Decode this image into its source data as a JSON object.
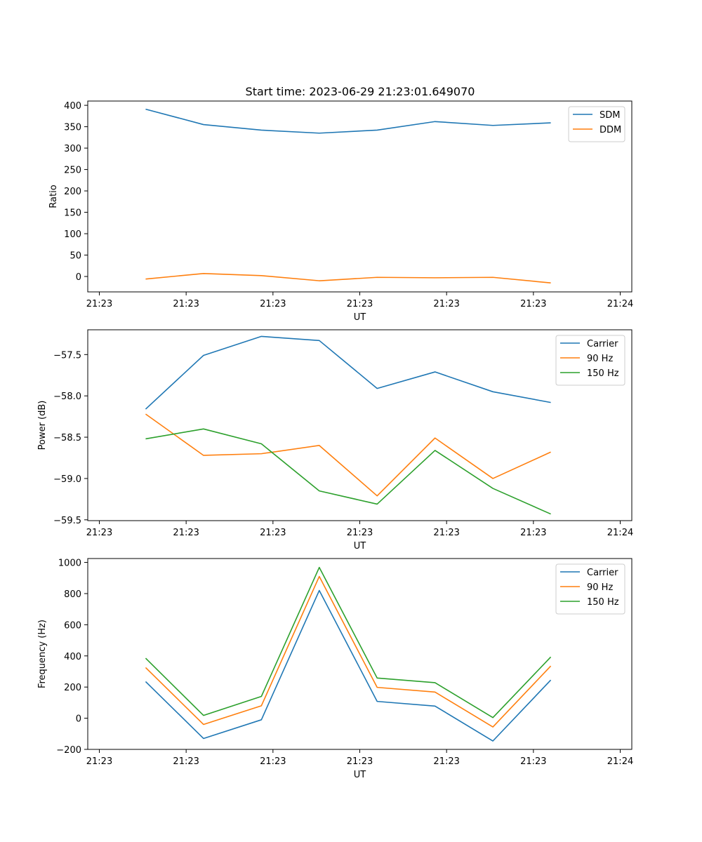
{
  "title": "Start time: 2023-06-29 21:23:01.649070",
  "chart_data": [
    {
      "type": "line",
      "xlabel": "UT",
      "ylabel": "Ratio",
      "x_positions": [
        1,
        2,
        3,
        4,
        5,
        6,
        7,
        8
      ],
      "xlim": [
        0,
        9.4
      ],
      "x_ticks": [
        {
          "pos": 0.2,
          "label": "21:23"
        },
        {
          "pos": 1.7,
          "label": "21:23"
        },
        {
          "pos": 3.2,
          "label": "21:23"
        },
        {
          "pos": 4.7,
          "label": "21:23"
        },
        {
          "pos": 6.2,
          "label": "21:23"
        },
        {
          "pos": 7.7,
          "label": "21:23"
        },
        {
          "pos": 9.2,
          "label": "21:24"
        }
      ],
      "ylim": [
        -36,
        410
      ],
      "y_ticks": [
        0,
        50,
        100,
        150,
        200,
        250,
        300,
        350,
        400
      ],
      "legend_position": "upper right",
      "series": [
        {
          "name": "SDM",
          "color": "#1f77b4",
          "values": [
            391,
            355,
            342,
            335,
            342,
            362,
            353,
            359
          ]
        },
        {
          "name": "DDM",
          "color": "#ff7f0e",
          "values": [
            -6,
            7,
            2,
            -10,
            -2,
            -3,
            -2,
            -15
          ]
        }
      ]
    },
    {
      "type": "line",
      "xlabel": "UT",
      "ylabel": "Power (dB)",
      "x_positions": [
        1,
        2,
        3,
        4,
        5,
        6,
        7,
        8
      ],
      "xlim": [
        0,
        9.4
      ],
      "x_ticks": [
        {
          "pos": 0.2,
          "label": "21:23"
        },
        {
          "pos": 1.7,
          "label": "21:23"
        },
        {
          "pos": 3.2,
          "label": "21:23"
        },
        {
          "pos": 4.7,
          "label": "21:23"
        },
        {
          "pos": 6.2,
          "label": "21:23"
        },
        {
          "pos": 7.7,
          "label": "21:23"
        },
        {
          "pos": 9.2,
          "label": "21:24"
        }
      ],
      "ylim": [
        -59.51,
        -57.2
      ],
      "y_ticks": [
        -59.5,
        -59.0,
        -58.5,
        -58.0,
        -57.5
      ],
      "y_tick_labels": [
        "−59.5",
        "−59.0",
        "−58.5",
        "−58.0",
        "−57.5"
      ],
      "legend_position": "upper right",
      "series": [
        {
          "name": "Carrier",
          "color": "#1f77b4",
          "values": [
            -58.16,
            -57.51,
            -57.28,
            -57.33,
            -57.91,
            -57.71,
            -57.95,
            -58.08
          ]
        },
        {
          "name": "90 Hz",
          "color": "#ff7f0e",
          "values": [
            -58.22,
            -58.72,
            -58.7,
            -58.6,
            -59.21,
            -58.51,
            -59.0,
            -58.68
          ]
        },
        {
          "name": "150 Hz",
          "color": "#2ca02c",
          "values": [
            -58.52,
            -58.4,
            -58.58,
            -59.15,
            -59.31,
            -58.66,
            -59.12,
            -59.43
          ]
        }
      ]
    },
    {
      "type": "line",
      "xlabel": "UT",
      "ylabel": "Frequency (Hz)",
      "x_positions": [
        1,
        2,
        3,
        4,
        5,
        6,
        7,
        8
      ],
      "xlim": [
        0,
        9.4
      ],
      "x_ticks": [
        {
          "pos": 0.2,
          "label": "21:23"
        },
        {
          "pos": 1.7,
          "label": "21:23"
        },
        {
          "pos": 3.2,
          "label": "21:23"
        },
        {
          "pos": 4.7,
          "label": "21:23"
        },
        {
          "pos": 6.2,
          "label": "21:23"
        },
        {
          "pos": 7.7,
          "label": "21:23"
        },
        {
          "pos": 9.2,
          "label": "21:24"
        }
      ],
      "ylim": [
        -200,
        1025
      ],
      "y_ticks": [
        -200,
        0,
        200,
        400,
        600,
        800,
        1000
      ],
      "y_tick_labels": [
        "−200",
        "0",
        "200",
        "400",
        "600",
        "800",
        "1000"
      ],
      "legend_position": "upper right",
      "series": [
        {
          "name": "Carrier",
          "color": "#1f77b4",
          "values": [
            235,
            -130,
            -10,
            820,
            108,
            78,
            -146,
            245
          ]
        },
        {
          "name": "90 Hz",
          "color": "#ff7f0e",
          "values": [
            325,
            -40,
            80,
            910,
            198,
            168,
            -56,
            335
          ]
        },
        {
          "name": "150 Hz",
          "color": "#2ca02c",
          "values": [
            385,
            18,
            140,
            968,
            258,
            228,
            4,
            393
          ]
        }
      ]
    }
  ]
}
